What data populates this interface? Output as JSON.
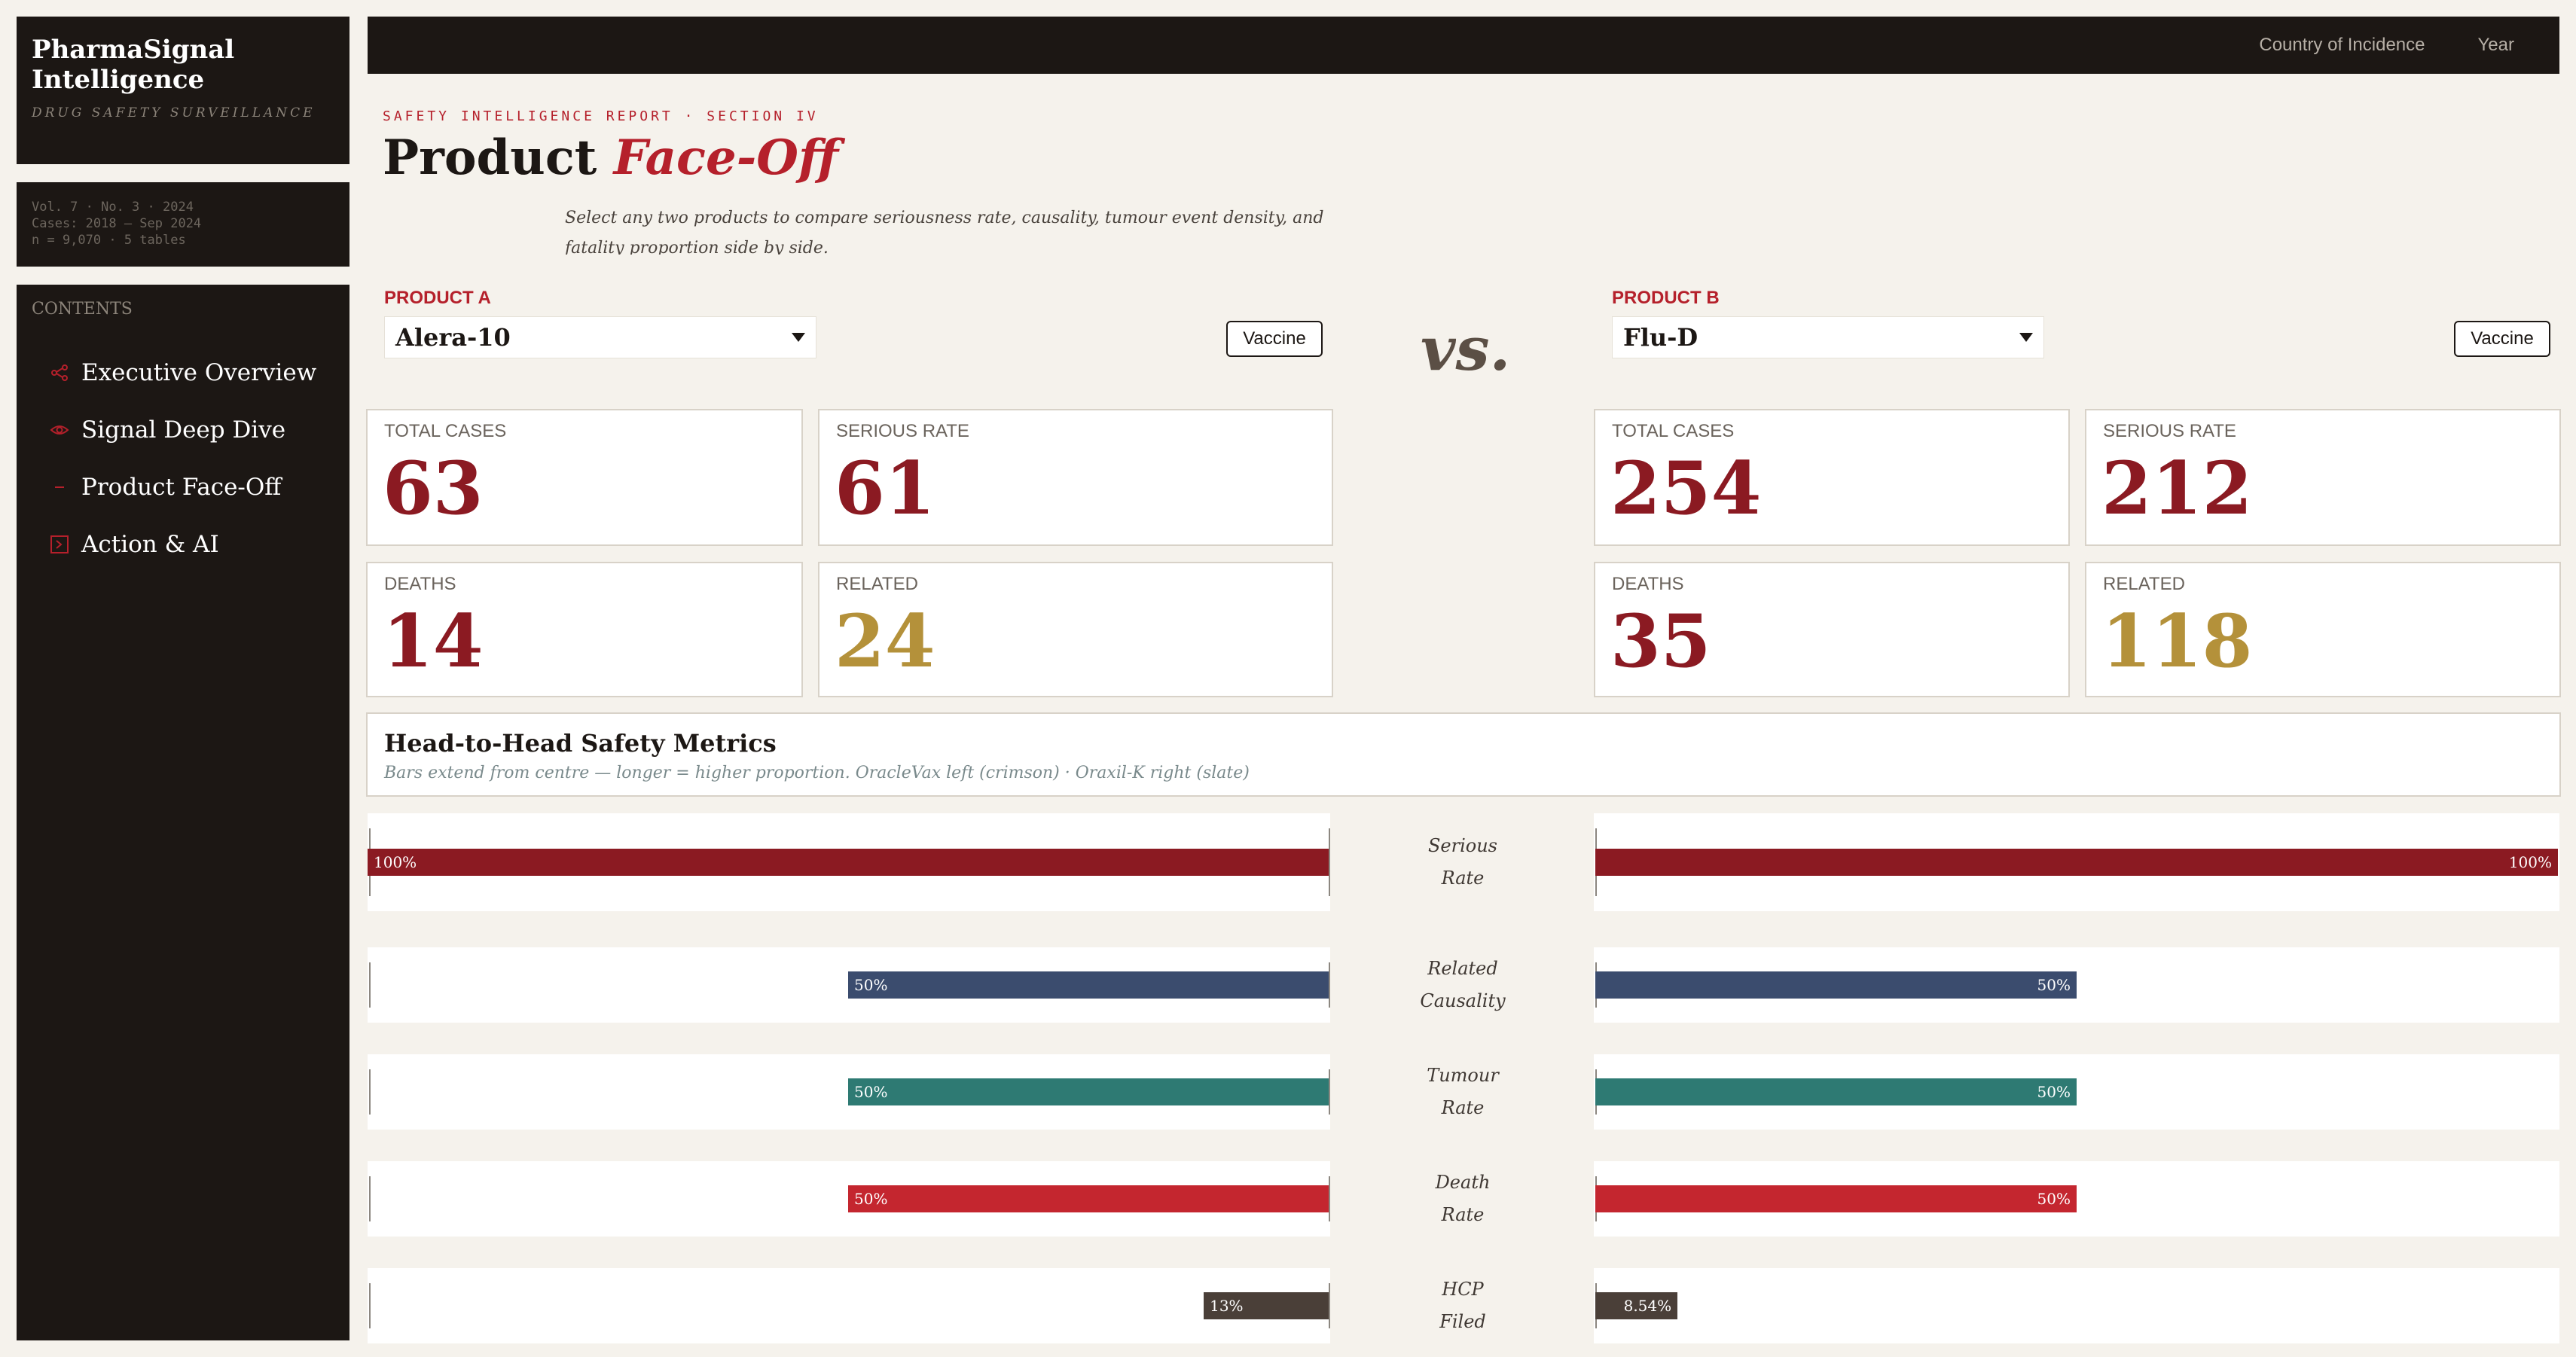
{
  "brand": {
    "title": "PharmaSignal Intelligence",
    "subtitle": "DRUG SAFETY SURVEILLANCE"
  },
  "meta": {
    "line1": "Vol. 7 · No. 3 · 2024",
    "line2": "Cases: 2018 – Sep 2024",
    "line3": "n = 9,070 · 5 tables"
  },
  "nav": {
    "heading": "CONTENTS",
    "items": [
      {
        "label": "Executive Overview",
        "icon": "share-icon"
      },
      {
        "label": "Signal Deep Dive",
        "icon": "eye-icon"
      },
      {
        "label": "Product Face-Off",
        "icon": "dash-icon"
      },
      {
        "label": "Action & AI",
        "icon": "terminal-icon"
      }
    ]
  },
  "topbar": {
    "filter1": "Country of Incidence",
    "filter2": "Year"
  },
  "header": {
    "eyebrow": "SAFETY INTELLIGENCE REPORT · SECTION IV",
    "title_main": "Product ",
    "title_accent": "Face-Off",
    "subtitle": "Select any two products to compare seriousness rate, causality, tumour event density, and fatality proportion side by side."
  },
  "productA": {
    "label": "PRODUCT A",
    "selected": "Alera-10",
    "type": "Vaccine",
    "stats": {
      "total_cases_label": "TOTAL CASES",
      "total_cases": "63",
      "serious_rate_label": "SERIOUS RATE",
      "serious_rate": "61",
      "deaths_label": "DEATHS",
      "deaths": "14",
      "related_label": "RELATED",
      "related": "24"
    }
  },
  "productB": {
    "label": "PRODUCT B",
    "selected": "Flu-D",
    "type": "Vaccine",
    "stats": {
      "total_cases_label": "TOTAL CASES",
      "total_cases": "254",
      "serious_rate_label": "SERIOUS RATE",
      "serious_rate": "212",
      "deaths_label": "DEATHS",
      "deaths": "35",
      "related_label": "RELATED",
      "related": "118"
    }
  },
  "vs": "vs.",
  "metrics": {
    "title": "Head-to-Head Safety Metrics",
    "subtitle": "Bars extend from centre — longer = higher proportion. OracleVax left (crimson) · Oraxil-K right (slate)"
  },
  "chart_data": {
    "type": "bar",
    "orientation": "horizontal-butterfly",
    "categories": [
      "Serious Rate",
      "Related Causality",
      "Tumour Rate",
      "Death Rate",
      "HCP Filed"
    ],
    "category_lines": [
      [
        "Serious",
        "Rate"
      ],
      [
        "Related",
        "Causality"
      ],
      [
        "Tumour",
        "Rate"
      ],
      [
        "Death",
        "Rate"
      ],
      [
        "HCP",
        "Filed"
      ]
    ],
    "series": [
      {
        "side": "left",
        "values": [
          100,
          50,
          50,
          50,
          13
        ],
        "labels": [
          "100%",
          "50%",
          "50%",
          "50%",
          "13%"
        ]
      },
      {
        "side": "right",
        "values": [
          100,
          50,
          50,
          50,
          8.54
        ],
        "labels": [
          "100%",
          "50%",
          "50%",
          "50%",
          "8.54%"
        ]
      }
    ],
    "colors": [
      "#8b1a22",
      "#3b4c6e",
      "#2e7a73",
      "#c4262f",
      "#4a3f38"
    ],
    "xlim": [
      0,
      100
    ]
  }
}
